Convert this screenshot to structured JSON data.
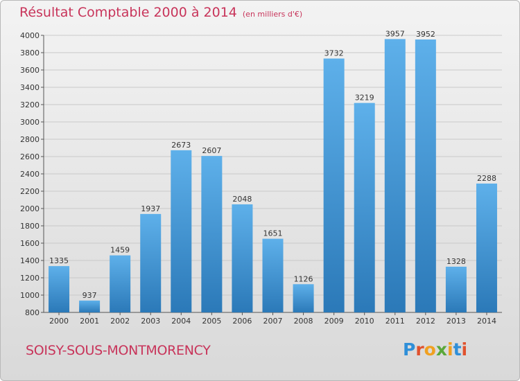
{
  "header": {
    "title": "Résultat Comptable 2000 à 2014",
    "unit": "(en milliers d'€)"
  },
  "footer": {
    "commune": "SOISY-SOUS-MONTMORENCY",
    "brand": "Proxiti"
  },
  "colors": {
    "title": "#c8345a",
    "bar_top": "#5eb0ea",
    "bar_bottom": "#2b79b8",
    "grid": "#c9c9c9"
  },
  "chart_data": {
    "type": "bar",
    "title": "Résultat Comptable 2000 à 2014",
    "categories": [
      "2000",
      "2001",
      "2002",
      "2003",
      "2004",
      "2005",
      "2006",
      "2007",
      "2008",
      "2009",
      "2010",
      "2011",
      "2012",
      "2013",
      "2014"
    ],
    "values": [
      1335,
      937,
      1459,
      1937,
      2673,
      2607,
      2048,
      1651,
      1126,
      3732,
      3219,
      3957,
      3952,
      1328,
      2288
    ],
    "ylim": [
      800,
      4000
    ],
    "yticks": [
      800,
      1000,
      1200,
      1400,
      1600,
      1800,
      2000,
      2200,
      2400,
      2600,
      2800,
      3000,
      3200,
      3400,
      3600,
      3800,
      4000
    ],
    "grid": true,
    "data_labels": true
  }
}
